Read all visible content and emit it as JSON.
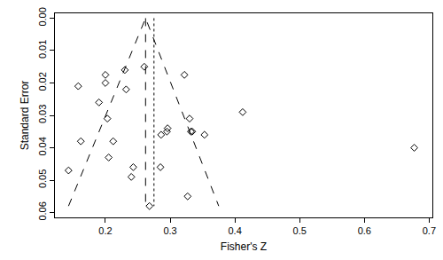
{
  "chart_data": {
    "type": "scatter",
    "x_label": "Fisher's Z",
    "y_label": "Standard Error",
    "xlim": [
      0.122,
      0.705
    ],
    "xticks": [
      0.2,
      0.3,
      0.4,
      0.5,
      0.6,
      0.7
    ],
    "ylim": [
      0.0615,
      -0.0015
    ],
    "yticks": [
      {
        "value": 0,
        "label": "0.00"
      },
      {
        "value": 0.01,
        "label": "0.01"
      },
      {
        "value": 0.02,
        "label": "0.02"
      },
      {
        "value": 0.03,
        "label": "0.03"
      },
      {
        "value": 0.04,
        "label": "0.04"
      },
      {
        "value": 0.05,
        "label": "0.05"
      },
      {
        "value": 0.06,
        "label": "0.06"
      }
    ],
    "grid": false,
    "series": [
      {
        "type": "scatter",
        "marker": "diamond-open",
        "color": "#000000",
        "x": [
          0.143,
          0.158,
          0.162,
          0.19,
          0.2,
          0.2,
          0.203,
          0.205,
          0.212,
          0.23,
          0.232,
          0.24,
          0.243,
          0.26,
          0.268,
          0.285,
          0.286,
          0.295,
          0.296,
          0.322,
          0.327,
          0.33,
          0.332,
          0.334,
          0.353,
          0.412,
          0.677
        ],
        "values": [
          0.047,
          0.021,
          0.038,
          0.026,
          0.0175,
          0.02,
          0.031,
          0.043,
          0.038,
          0.016,
          0.022,
          0.049,
          0.046,
          0.015,
          0.058,
          0.046,
          0.036,
          0.035,
          0.034,
          0.0175,
          0.055,
          0.031,
          0.035,
          0.035,
          0.036,
          0.029,
          0.04
        ]
      },
      {
        "type": "line",
        "line_style": "dashed",
        "color": "#000000",
        "x": [
          0.143,
          0.262,
          0.375
        ],
        "values": [
          0.058,
          0,
          0.058
        ]
      },
      {
        "type": "line",
        "line_style": "dashed",
        "color": "#000000",
        "x": [
          0.262,
          0.262
        ],
        "values": [
          0,
          0.058
        ]
      },
      {
        "type": "line",
        "line_style": "dotted",
        "color": "#000000",
        "x": [
          0.275,
          0.275
        ],
        "values": [
          0,
          0.058
        ]
      }
    ]
  }
}
